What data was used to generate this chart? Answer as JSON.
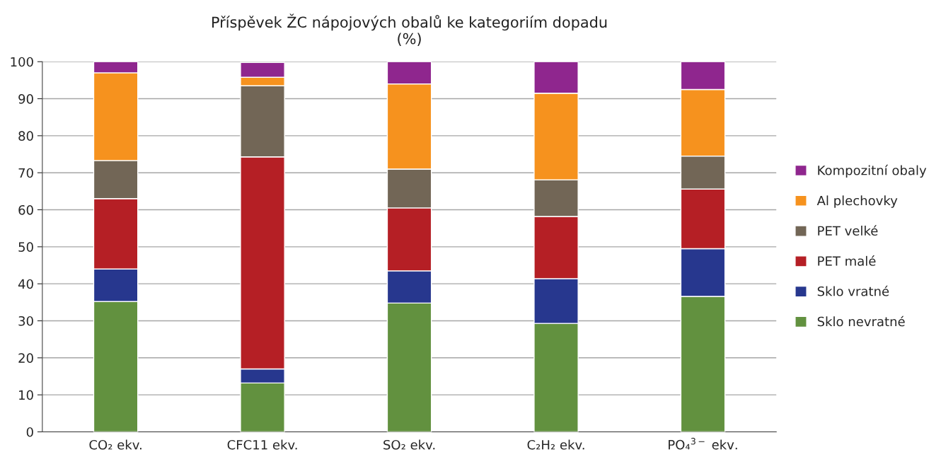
{
  "chart_data": {
    "type": "bar",
    "stacked": true,
    "title": "Příspěvek ŽC nápojových obalů ke kategoriím dopadu",
    "subtitle": "(%)",
    "categories": [
      "CO₂ ekv.",
      "CFC11 ekv.",
      "SO₂ ekv.",
      "C₂H₂ ekv.",
      "PO₄$^{3−}$ ekv."
    ],
    "series": [
      {
        "name": "Sklo nevratné",
        "color": "#62913f",
        "values": [
          35.2,
          13.2,
          34.8,
          29.3,
          36.6
        ]
      },
      {
        "name": "Sklo vratné",
        "color": "#27378e",
        "values": [
          8.8,
          3.8,
          8.7,
          12.1,
          12.9
        ]
      },
      {
        "name": "PET malé",
        "color": "#b51f25",
        "values": [
          19.0,
          57.3,
          17.0,
          16.8,
          16.1
        ]
      },
      {
        "name": "PET velké",
        "color": "#726656",
        "values": [
          10.3,
          19.2,
          10.5,
          9.9,
          8.9
        ]
      },
      {
        "name": "Al plechovky",
        "color": "#f6921e",
        "values": [
          23.7,
          2.3,
          23.0,
          23.4,
          18.0
        ]
      },
      {
        "name": "Kompozitní obaly",
        "color": "#8f268e",
        "values": [
          3.0,
          4.0,
          6.0,
          8.5,
          7.5
        ]
      }
    ],
    "ylim": [
      0,
      100
    ],
    "yticks": [
      0,
      10,
      20,
      30,
      40,
      50,
      60,
      70,
      80,
      90,
      100
    ],
    "grid": "y",
    "legend": "right"
  }
}
